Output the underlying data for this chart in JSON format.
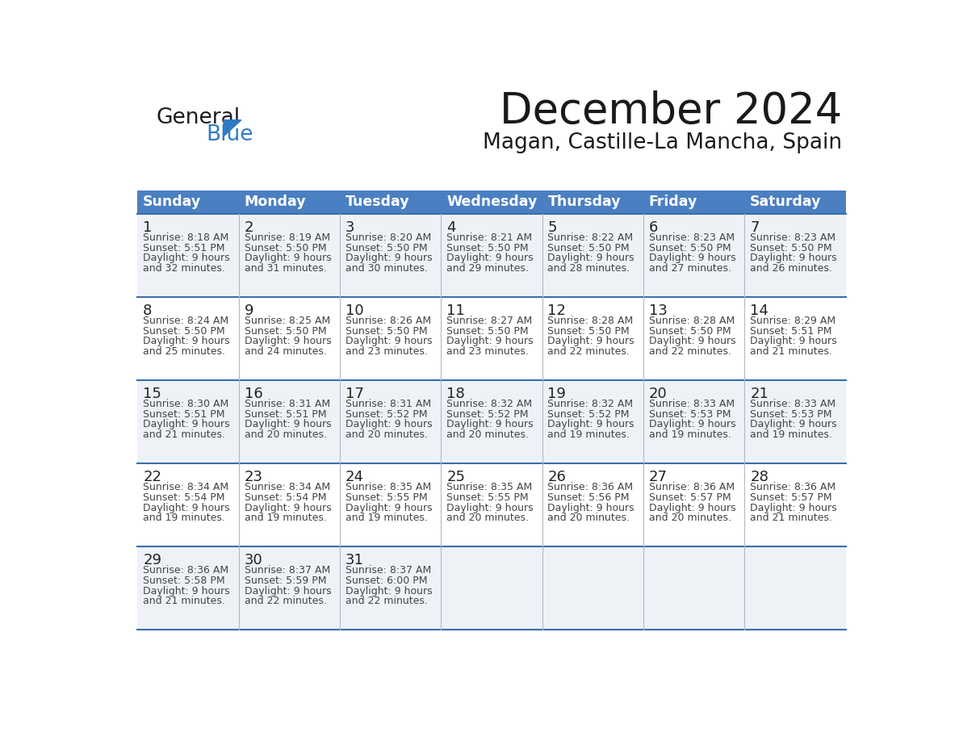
{
  "title": "December 2024",
  "subtitle": "Magan, Castille-La Mancha, Spain",
  "days_of_week": [
    "Sunday",
    "Monday",
    "Tuesday",
    "Wednesday",
    "Thursday",
    "Friday",
    "Saturday"
  ],
  "header_bg": "#4a7fc1",
  "header_text": "#ffffff",
  "row_bg_odd": "#eef2f7",
  "row_bg_even": "#ffffff",
  "text_color": "#444444",
  "day_num_color": "#222222",
  "border_color": "#3a6faa",
  "calendar_data": [
    [
      {
        "day": 1,
        "sunrise": "8:18 AM",
        "sunset": "5:51 PM",
        "daylight": "9 hours and 32 minutes."
      },
      {
        "day": 2,
        "sunrise": "8:19 AM",
        "sunset": "5:50 PM",
        "daylight": "9 hours and 31 minutes."
      },
      {
        "day": 3,
        "sunrise": "8:20 AM",
        "sunset": "5:50 PM",
        "daylight": "9 hours and 30 minutes."
      },
      {
        "day": 4,
        "sunrise": "8:21 AM",
        "sunset": "5:50 PM",
        "daylight": "9 hours and 29 minutes."
      },
      {
        "day": 5,
        "sunrise": "8:22 AM",
        "sunset": "5:50 PM",
        "daylight": "9 hours and 28 minutes."
      },
      {
        "day": 6,
        "sunrise": "8:23 AM",
        "sunset": "5:50 PM",
        "daylight": "9 hours and 27 minutes."
      },
      {
        "day": 7,
        "sunrise": "8:23 AM",
        "sunset": "5:50 PM",
        "daylight": "9 hours and 26 minutes."
      }
    ],
    [
      {
        "day": 8,
        "sunrise": "8:24 AM",
        "sunset": "5:50 PM",
        "daylight": "9 hours and 25 minutes."
      },
      {
        "day": 9,
        "sunrise": "8:25 AM",
        "sunset": "5:50 PM",
        "daylight": "9 hours and 24 minutes."
      },
      {
        "day": 10,
        "sunrise": "8:26 AM",
        "sunset": "5:50 PM",
        "daylight": "9 hours and 23 minutes."
      },
      {
        "day": 11,
        "sunrise": "8:27 AM",
        "sunset": "5:50 PM",
        "daylight": "9 hours and 23 minutes."
      },
      {
        "day": 12,
        "sunrise": "8:28 AM",
        "sunset": "5:50 PM",
        "daylight": "9 hours and 22 minutes."
      },
      {
        "day": 13,
        "sunrise": "8:28 AM",
        "sunset": "5:50 PM",
        "daylight": "9 hours and 22 minutes."
      },
      {
        "day": 14,
        "sunrise": "8:29 AM",
        "sunset": "5:51 PM",
        "daylight": "9 hours and 21 minutes."
      }
    ],
    [
      {
        "day": 15,
        "sunrise": "8:30 AM",
        "sunset": "5:51 PM",
        "daylight": "9 hours and 21 minutes."
      },
      {
        "day": 16,
        "sunrise": "8:31 AM",
        "sunset": "5:51 PM",
        "daylight": "9 hours and 20 minutes."
      },
      {
        "day": 17,
        "sunrise": "8:31 AM",
        "sunset": "5:52 PM",
        "daylight": "9 hours and 20 minutes."
      },
      {
        "day": 18,
        "sunrise": "8:32 AM",
        "sunset": "5:52 PM",
        "daylight": "9 hours and 20 minutes."
      },
      {
        "day": 19,
        "sunrise": "8:32 AM",
        "sunset": "5:52 PM",
        "daylight": "9 hours and 19 minutes."
      },
      {
        "day": 20,
        "sunrise": "8:33 AM",
        "sunset": "5:53 PM",
        "daylight": "9 hours and 19 minutes."
      },
      {
        "day": 21,
        "sunrise": "8:33 AM",
        "sunset": "5:53 PM",
        "daylight": "9 hours and 19 minutes."
      }
    ],
    [
      {
        "day": 22,
        "sunrise": "8:34 AM",
        "sunset": "5:54 PM",
        "daylight": "9 hours and 19 minutes."
      },
      {
        "day": 23,
        "sunrise": "8:34 AM",
        "sunset": "5:54 PM",
        "daylight": "9 hours and 19 minutes."
      },
      {
        "day": 24,
        "sunrise": "8:35 AM",
        "sunset": "5:55 PM",
        "daylight": "9 hours and 19 minutes."
      },
      {
        "day": 25,
        "sunrise": "8:35 AM",
        "sunset": "5:55 PM",
        "daylight": "9 hours and 20 minutes."
      },
      {
        "day": 26,
        "sunrise": "8:36 AM",
        "sunset": "5:56 PM",
        "daylight": "9 hours and 20 minutes."
      },
      {
        "day": 27,
        "sunrise": "8:36 AM",
        "sunset": "5:57 PM",
        "daylight": "9 hours and 20 minutes."
      },
      {
        "day": 28,
        "sunrise": "8:36 AM",
        "sunset": "5:57 PM",
        "daylight": "9 hours and 21 minutes."
      }
    ],
    [
      {
        "day": 29,
        "sunrise": "8:36 AM",
        "sunset": "5:58 PM",
        "daylight": "9 hours and 21 minutes."
      },
      {
        "day": 30,
        "sunrise": "8:37 AM",
        "sunset": "5:59 PM",
        "daylight": "9 hours and 22 minutes."
      },
      {
        "day": 31,
        "sunrise": "8:37 AM",
        "sunset": "6:00 PM",
        "daylight": "9 hours and 22 minutes."
      },
      null,
      null,
      null,
      null
    ]
  ],
  "logo_color1": "#1a1a1a",
  "logo_color2": "#2e7bc4",
  "logo_triangle_color": "#2e7bc4"
}
